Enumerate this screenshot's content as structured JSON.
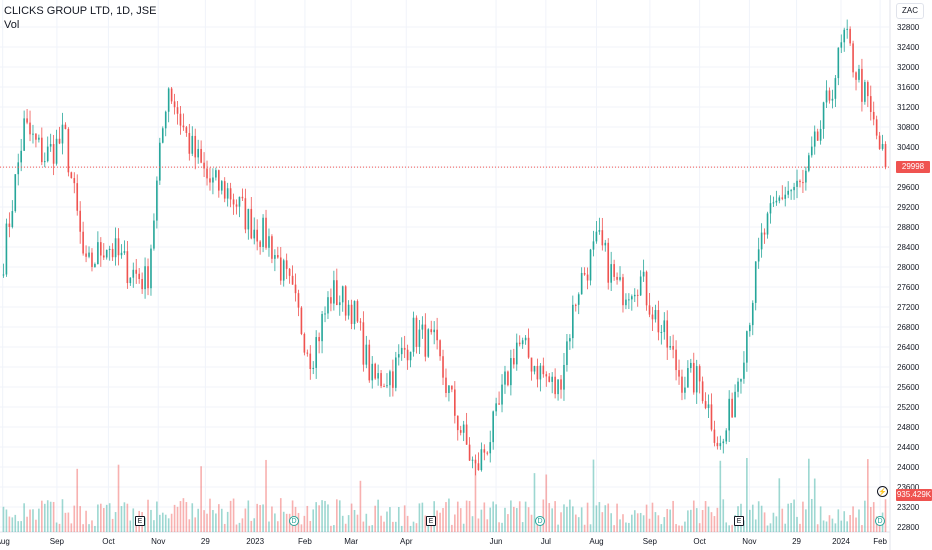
{
  "header": {
    "symbol_title": "CLICKS GROUP LTD, 1D, JSE",
    "volume_label": "Vol"
  },
  "currency": "ZAC",
  "last_price": "29998",
  "last_volume": "935.429K",
  "colors": {
    "up": "#26a69a",
    "down": "#ef5350",
    "grid": "#f0f3fa",
    "price_line": "#ef5350"
  },
  "markers": {
    "earnings_label": "E",
    "dividend_label": "D",
    "flash_label": "⚡"
  },
  "chart_data": {
    "type": "candlestick",
    "title": "CLICKS GROUP LTD, 1D, JSE",
    "y_axis": {
      "ticks": [
        22800,
        23200,
        23600,
        24000,
        24400,
        24800,
        25200,
        25600,
        26000,
        26400,
        26800,
        27200,
        27600,
        28000,
        28400,
        28800,
        29200,
        29600,
        30000,
        30400,
        30800,
        31200,
        31600,
        32000,
        32400,
        32800
      ],
      "ylim": [
        22700,
        33000
      ],
      "position": "right"
    },
    "x_axis": {
      "ticks": [
        "Aug",
        "Sep",
        "Oct",
        "Nov",
        "29",
        "2023",
        "Feb",
        "Mar",
        "Apr",
        "Jun",
        "Jul",
        "Aug",
        "Sep",
        "Oct",
        "Nov",
        "29",
        "2024",
        "Feb"
      ]
    },
    "last_price": 29998,
    "series_anchor_closes": [
      {
        "label": "Aug",
        "close": 28200
      },
      {
        "label": "Aug",
        "close": 30800
      },
      {
        "label": "Sep",
        "close": 30200
      },
      {
        "label": "Sep",
        "close": 30600
      },
      {
        "label": "Sep",
        "close": 27900
      },
      {
        "label": "Oct",
        "close": 28500
      },
      {
        "label": "Oct",
        "close": 28000
      },
      {
        "label": "Oct",
        "close": 27700
      },
      {
        "label": "Nov",
        "close": 31700
      },
      {
        "label": "Nov",
        "close": 30500
      },
      {
        "label": "Nov",
        "close": 29700
      },
      {
        "label": "29",
        "close": 29500
      },
      {
        "label": "29",
        "close": 28900
      },
      {
        "label": "2023",
        "close": 28500
      },
      {
        "label": "2023",
        "close": 27500
      },
      {
        "label": "Feb",
        "close": 26200
      },
      {
        "label": "Feb",
        "close": 27500
      },
      {
        "label": "Mar",
        "close": 27200
      },
      {
        "label": "Mar",
        "close": 25700
      },
      {
        "label": "Apr",
        "close": 25900
      },
      {
        "label": "Apr",
        "close": 26700
      },
      {
        "label": "Apr",
        "close": 26400
      },
      {
        "label": "Jun",
        "close": 25100
      },
      {
        "label": "Jun",
        "close": 23900
      },
      {
        "label": "Jun",
        "close": 24900
      },
      {
        "label": "Jul",
        "close": 26500
      },
      {
        "label": "Jul",
        "close": 26000
      },
      {
        "label": "Jul",
        "close": 25500
      },
      {
        "label": "Aug",
        "close": 27600
      },
      {
        "label": "Aug",
        "close": 28500
      },
      {
        "label": "Sep",
        "close": 27500
      },
      {
        "label": "Sep",
        "close": 27800
      },
      {
        "label": "Sep",
        "close": 26800
      },
      {
        "label": "Oct",
        "close": 25800
      },
      {
        "label": "Oct",
        "close": 25700
      },
      {
        "label": "Oct",
        "close": 24300
      },
      {
        "label": "Nov",
        "close": 26200
      },
      {
        "label": "Nov",
        "close": 28600
      },
      {
        "label": "Nov",
        "close": 29500
      },
      {
        "label": "29",
        "close": 29600
      },
      {
        "label": "29",
        "close": 31000
      },
      {
        "label": "2024",
        "close": 32600
      },
      {
        "label": "2024",
        "close": 31400
      },
      {
        "label": "Feb",
        "close": 29998
      }
    ]
  }
}
